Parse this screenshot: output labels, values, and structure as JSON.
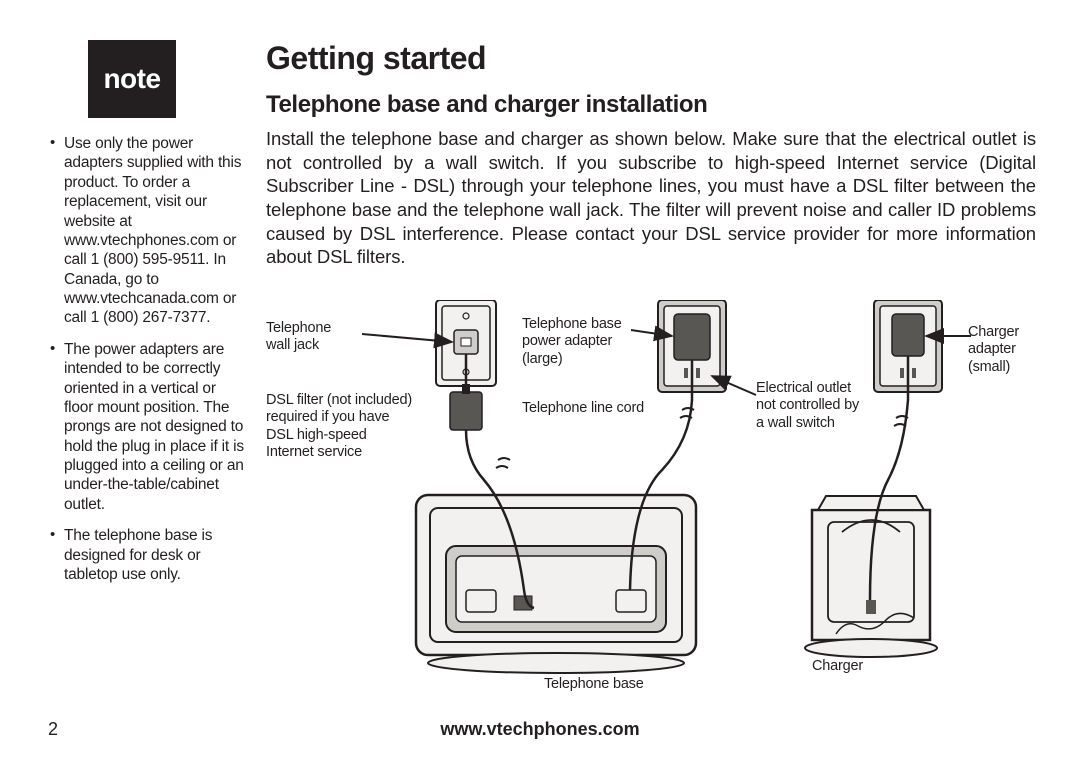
{
  "note": {
    "badge": "note",
    "items": [
      "Use only the power adapters supplied with this product. To order a replacement, visit our website at www.vtechphones.com or call 1 (800) 595-9511. In Canada, go to www.vtechcanada.com or call 1 (800) 267-7377.",
      "The power adapters are intended to be correctly oriented in a vertical or floor mount position. The prongs are not designed to hold the plug in place if it is plugged into a ceiling or an under-the-table/cabinet outlet.",
      "The telephone base is designed for desk or tabletop use only."
    ]
  },
  "main": {
    "heading": "Getting started",
    "subheading": "Telephone base and charger installation",
    "body": "Install the telephone base and charger as shown below. Make sure that the electrical outlet is not controlled by a wall switch. If you subscribe to high-speed Internet service (Digital Subscriber Line - DSL) through your telephone lines, you must have a DSL filter between the telephone base and the telephone wall jack. The filter will prevent noise and caller ID problems caused by DSL interference. Please contact your DSL service provider for more information about DSL filters."
  },
  "diagram": {
    "labels": {
      "wall_jack": "Telephone\nwall jack",
      "dsl_filter": "DSL filter (not included)\nrequired if you have\nDSL high-speed\nInternet service",
      "base_adapter": "Telephone base\npower adapter\n(large)",
      "tel_line_cord": "Telephone line cord",
      "outlet": "Electrical outlet\nnot controlled by\na wall switch",
      "charger_adapter": "Charger\nadapter\n(small)",
      "charger": "Charger",
      "base": "Telephone base"
    },
    "colors": {
      "stroke": "#231f20",
      "fill_light": "#f2f1ef",
      "fill_mid": "#cfcdc9",
      "fill_dark": "#595754"
    }
  },
  "footer": {
    "page": "2",
    "url": "www.vtechphones.com"
  }
}
